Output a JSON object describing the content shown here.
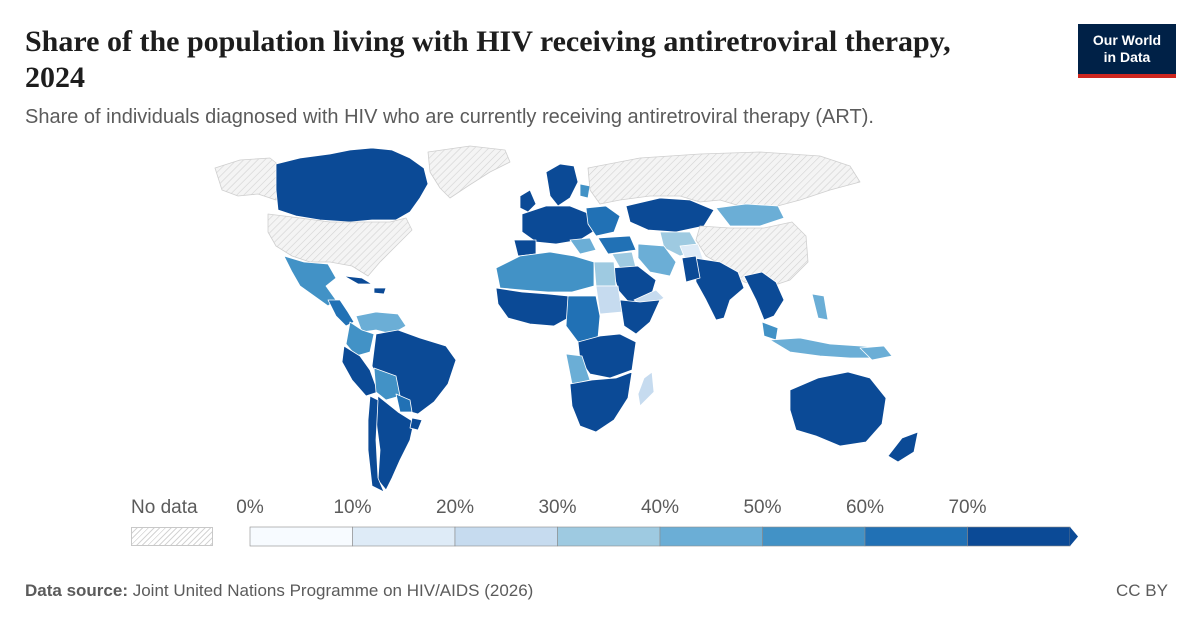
{
  "header": {
    "title": "Share of the population living with HIV receiving antiretroviral therapy, 2024",
    "subtitle": "Share of individuals diagnosed with HIV who are currently receiving antiretroviral therapy (ART).",
    "logo_line1": "Our World",
    "logo_line2": "in Data"
  },
  "legend": {
    "no_data_label": "No data",
    "bins": [
      {
        "label": "0%",
        "color": "#f7fbff"
      },
      {
        "label": "10%",
        "color": "#deebf7"
      },
      {
        "label": "20%",
        "color": "#c6dbef"
      },
      {
        "label": "30%",
        "color": "#9ecae1"
      },
      {
        "label": "40%",
        "color": "#6baed6"
      },
      {
        "label": "50%",
        "color": "#4292c6"
      },
      {
        "label": "60%",
        "color": "#2171b5"
      },
      {
        "label": "70%",
        "color": "#0b4a96"
      }
    ]
  },
  "footer": {
    "source_label": "Data source:",
    "source_text": "Joint United Nations Programme on HIV/AIDS (2026)",
    "license": "CC BY"
  },
  "colors": {
    "no_data_fill": "#efefef",
    "no_data_hatch": "#d2d2d2",
    "country_border": "#ffffff",
    "top_bin": "#0b4a96"
  }
}
